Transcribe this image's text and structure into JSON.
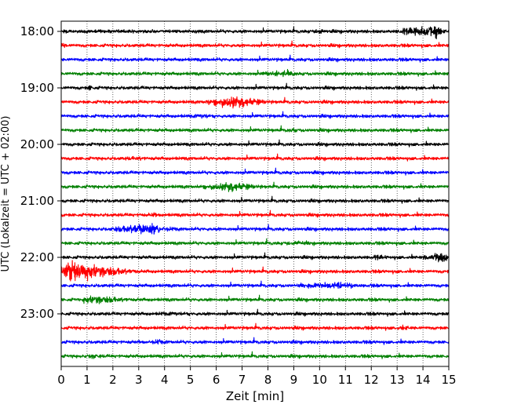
{
  "chart_data": {
    "type": "line",
    "title": "",
    "xlabel": "Zeit  [min]",
    "ylabel": "UTC (Lokalzeit = UTC + 02:00)",
    "xlim": [
      0,
      15
    ],
    "x_ticks": [
      "0",
      "1",
      "2",
      "3",
      "4",
      "5",
      "6",
      "7",
      "8",
      "9",
      "10",
      "11",
      "12",
      "13",
      "14",
      "15"
    ],
    "y_tick_labels": [
      {
        "label": "18:00",
        "trace": 0
      },
      {
        "label": "19:00",
        "trace": 4
      },
      {
        "label": "20:00",
        "trace": 8
      },
      {
        "label": "21:00",
        "trace": 12
      },
      {
        "label": "22:00",
        "trace": 16
      },
      {
        "label": "23:00",
        "trace": 20
      }
    ],
    "trace_interval_minutes": 15,
    "trace_count": 24,
    "trace_colors": [
      "#000000",
      "#ff0000",
      "#0000ff",
      "#008000"
    ],
    "grid": "vertical dotted",
    "events": [
      {
        "trace": 0,
        "start": 13.0,
        "end": 15.0,
        "peak": 14.5,
        "amp": 1.4
      },
      {
        "trace": 0,
        "start": 9.8,
        "end": 10.3,
        "peak": 10.0,
        "amp": 0.7
      },
      {
        "trace": 1,
        "start": 0.0,
        "end": 0.3,
        "peak": 0.05,
        "amp": 0.6
      },
      {
        "trace": 3,
        "start": 7.8,
        "end": 9.5,
        "peak": 8.6,
        "amp": 0.7
      },
      {
        "trace": 4,
        "start": 1.0,
        "end": 1.3,
        "peak": 1.1,
        "amp": 0.5
      },
      {
        "trace": 5,
        "start": 5.6,
        "end": 8.5,
        "peak": 6.6,
        "amp": 1.4
      },
      {
        "trace": 6,
        "start": 5.0,
        "end": 6.3,
        "peak": 5.5,
        "amp": 0.4
      },
      {
        "trace": 7,
        "start": 8.7,
        "end": 9.3,
        "peak": 9.0,
        "amp": 0.4
      },
      {
        "trace": 9,
        "start": 2.5,
        "end": 3.5,
        "peak": 3.0,
        "amp": 0.3
      },
      {
        "trace": 11,
        "start": 5.4,
        "end": 8.2,
        "peak": 6.5,
        "amp": 1.0
      },
      {
        "trace": 13,
        "start": 3.0,
        "end": 4.0,
        "peak": 3.6,
        "amp": 0.3
      },
      {
        "trace": 14,
        "start": 1.9,
        "end": 4.6,
        "peak": 3.4,
        "amp": 1.2
      },
      {
        "trace": 15,
        "start": 8.5,
        "end": 10.0,
        "peak": 9.2,
        "amp": 0.4
      },
      {
        "trace": 16,
        "start": 12.0,
        "end": 13.0,
        "peak": 12.3,
        "amp": 0.4
      },
      {
        "trace": 16,
        "start": 14.0,
        "end": 15.0,
        "peak": 14.9,
        "amp": 1.2
      },
      {
        "trace": 17,
        "start": 0.0,
        "end": 3.5,
        "peak": 0.4,
        "amp": 2.6
      },
      {
        "trace": 18,
        "start": 9.0,
        "end": 12.0,
        "peak": 10.8,
        "amp": 0.7
      },
      {
        "trace": 19,
        "start": 0.7,
        "end": 3.2,
        "peak": 1.3,
        "amp": 1.0
      },
      {
        "trace": 20,
        "start": 3.8,
        "end": 5.5,
        "peak": 4.3,
        "amp": 0.3
      },
      {
        "trace": 21,
        "start": 13.0,
        "end": 13.8,
        "peak": 13.3,
        "amp": 0.4
      },
      {
        "trace": 22,
        "start": 3.0,
        "end": 4.5,
        "peak": 3.8,
        "amp": 0.3
      },
      {
        "trace": 23,
        "start": 1.0,
        "end": 1.6,
        "peak": 1.3,
        "amp": 0.6
      }
    ]
  }
}
